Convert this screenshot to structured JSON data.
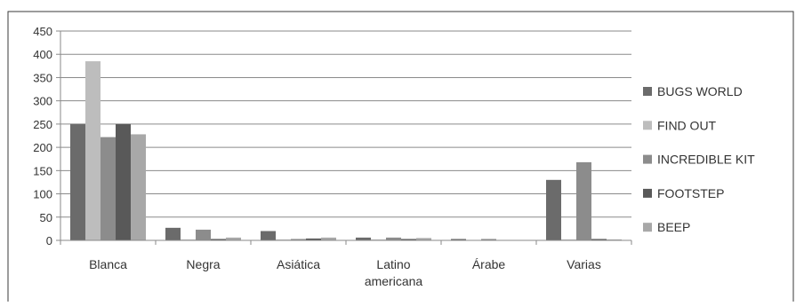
{
  "chart_data": {
    "type": "bar",
    "categories": [
      "Blanca",
      "Negra",
      "Asiática",
      [
        "Latino",
        "americana"
      ],
      "Árabe",
      "Varias"
    ],
    "ylim": [
      0,
      450
    ],
    "yticks": [
      0,
      50,
      100,
      150,
      200,
      250,
      300,
      350,
      400,
      450
    ],
    "grid": true,
    "legend_position": "right",
    "series": [
      {
        "name": "BUGS WORLD",
        "color": "#6b6b6b",
        "values": [
          250,
          27,
          20,
          6,
          3,
          130
        ]
      },
      {
        "name": "FIND OUT",
        "color": "#bdbdbd",
        "values": [
          385,
          2,
          2,
          2,
          0,
          2
        ]
      },
      {
        "name": "INCREDIBLE KIT",
        "color": "#8c8c8c",
        "values": [
          222,
          23,
          3,
          6,
          3,
          168
        ]
      },
      {
        "name": "FOOTSTEP",
        "color": "#595959",
        "values": [
          250,
          3,
          4,
          3,
          0,
          3
        ]
      },
      {
        "name": "BEEP",
        "color": "#a8a8a8",
        "values": [
          228,
          6,
          6,
          5,
          0,
          2
        ]
      }
    ]
  }
}
